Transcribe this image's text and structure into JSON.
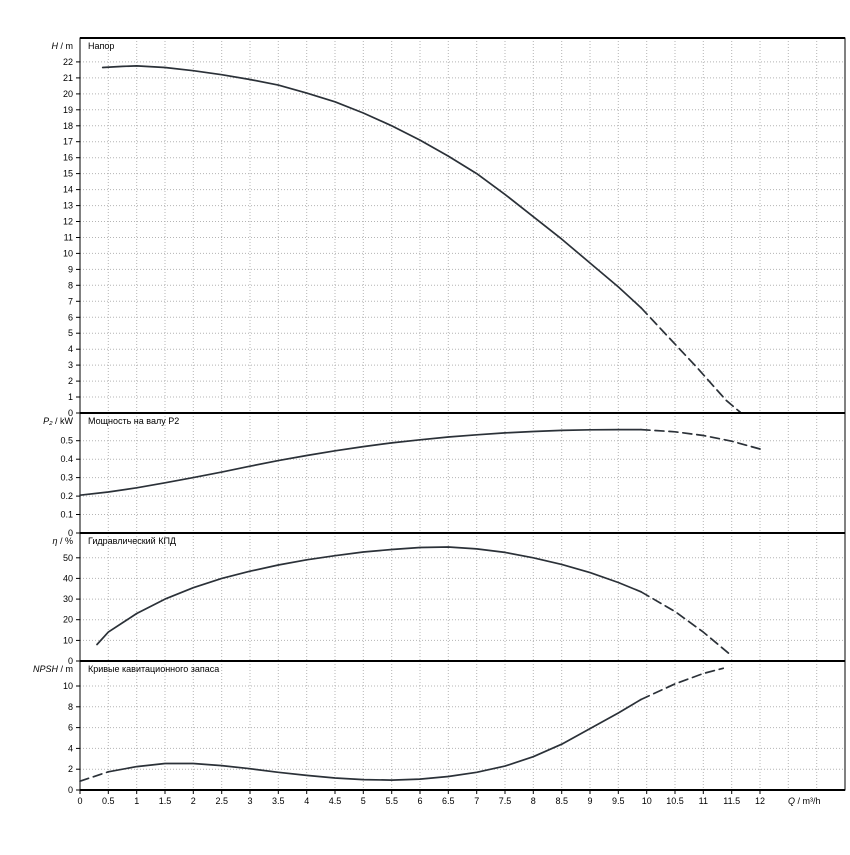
{
  "page": {
    "background": "#ffffff",
    "curve_color": "#2b3138",
    "grid_color": "#b4b4b4",
    "axis_color": "#000000"
  },
  "xaxis": {
    "label": "Q / m³/h",
    "min": 0,
    "max": 13.5,
    "grid_step": 0.5,
    "ticks": [
      0,
      0.5,
      1,
      1.5,
      2,
      2.5,
      3,
      3.5,
      4,
      4.5,
      5,
      5.5,
      6,
      6.5,
      7,
      7.5,
      8,
      8.5,
      9,
      9.5,
      10,
      10.5,
      11,
      11.5,
      12
    ]
  },
  "chart_data": [
    {
      "type": "line",
      "panel": "head",
      "title": "Напор",
      "ylabel": "H / m",
      "ylim": [
        0,
        23.5
      ],
      "grid": true,
      "yticks": [
        0,
        1,
        2,
        3,
        4,
        5,
        6,
        7,
        8,
        9,
        10,
        11,
        12,
        13,
        14,
        15,
        16,
        17,
        18,
        19,
        20,
        21,
        22
      ],
      "series": [
        {
          "name": "head-solid",
          "dash": false,
          "points": [
            [
              0.4,
              21.65
            ],
            [
              0.75,
              21.72
            ],
            [
              1,
              21.75
            ],
            [
              1.5,
              21.65
            ],
            [
              2,
              21.45
            ],
            [
              2.5,
              21.2
            ],
            [
              3,
              20.9
            ],
            [
              3.5,
              20.55
            ],
            [
              4,
              20.05
            ],
            [
              4.5,
              19.5
            ],
            [
              5,
              18.8
            ],
            [
              5.5,
              18.0
            ],
            [
              6,
              17.1
            ],
            [
              6.5,
              16.1
            ],
            [
              7,
              15.0
            ],
            [
              7.5,
              13.7
            ],
            [
              8,
              12.3
            ],
            [
              8.5,
              10.9
            ],
            [
              9,
              9.4
            ],
            [
              9.5,
              7.9
            ],
            [
              9.9,
              6.6
            ]
          ]
        },
        {
          "name": "head-extrapolated",
          "dash": true,
          "points": [
            [
              9.9,
              6.6
            ],
            [
              10.4,
              4.7
            ],
            [
              10.9,
              2.8
            ],
            [
              11.4,
              0.8
            ],
            [
              11.65,
              0.05
            ]
          ]
        }
      ]
    },
    {
      "type": "line",
      "panel": "power",
      "title": "Мощность на валу P2",
      "ylabel": "P₂ / kW",
      "ylim": [
        0,
        0.65
      ],
      "grid": true,
      "yticks": [
        0,
        0.1,
        0.2,
        0.3,
        0.4,
        0.5
      ],
      "series": [
        {
          "name": "power-solid",
          "dash": false,
          "points": [
            [
              0,
              0.205
            ],
            [
              0.5,
              0.222
            ],
            [
              1,
              0.245
            ],
            [
              1.5,
              0.272
            ],
            [
              2,
              0.3
            ],
            [
              2.5,
              0.33
            ],
            [
              3,
              0.362
            ],
            [
              3.5,
              0.392
            ],
            [
              4,
              0.42
            ],
            [
              4.5,
              0.445
            ],
            [
              5,
              0.468
            ],
            [
              5.5,
              0.488
            ],
            [
              6,
              0.505
            ],
            [
              6.5,
              0.52
            ],
            [
              7,
              0.532
            ],
            [
              7.5,
              0.542
            ],
            [
              8,
              0.55
            ],
            [
              8.5,
              0.556
            ],
            [
              9,
              0.559
            ],
            [
              9.5,
              0.56
            ],
            [
              9.9,
              0.56
            ]
          ]
        },
        {
          "name": "power-extrapolated",
          "dash": true,
          "points": [
            [
              9.9,
              0.56
            ],
            [
              10.5,
              0.548
            ],
            [
              11,
              0.528
            ],
            [
              11.5,
              0.497
            ],
            [
              12,
              0.455
            ]
          ]
        }
      ]
    },
    {
      "type": "line",
      "panel": "efficiency",
      "title": "Гидравлический КПД",
      "ylabel": "η / %",
      "ylim": [
        0,
        62
      ],
      "grid": true,
      "yticks": [
        0,
        10,
        20,
        30,
        40,
        50
      ],
      "series": [
        {
          "name": "efficiency-solid",
          "dash": false,
          "points": [
            [
              0.3,
              8
            ],
            [
              0.5,
              14
            ],
            [
              1,
              23
            ],
            [
              1.5,
              30
            ],
            [
              2,
              35.5
            ],
            [
              2.5,
              40
            ],
            [
              3,
              43.5
            ],
            [
              3.5,
              46.5
            ],
            [
              4,
              49
            ],
            [
              4.5,
              51
            ],
            [
              5,
              52.8
            ],
            [
              5.5,
              54
            ],
            [
              6,
              55
            ],
            [
              6.5,
              55.2
            ],
            [
              7,
              54.3
            ],
            [
              7.5,
              52.6
            ],
            [
              8,
              50
            ],
            [
              8.5,
              46.8
            ],
            [
              9,
              42.8
            ],
            [
              9.5,
              38
            ],
            [
              9.9,
              33.5
            ]
          ]
        },
        {
          "name": "efficiency-extrapolated",
          "dash": true,
          "points": [
            [
              9.9,
              33.5
            ],
            [
              10.5,
              24
            ],
            [
              11,
              14
            ],
            [
              11.5,
              2.5
            ]
          ]
        }
      ]
    },
    {
      "type": "line",
      "panel": "npsh",
      "title": "Кривые кавитационного запаса",
      "ylabel": "NPSH / m",
      "ylim": [
        0,
        12.4
      ],
      "grid": true,
      "yticks": [
        0,
        2,
        4,
        6,
        8,
        10
      ],
      "series": [
        {
          "name": "npsh-lead-extrapolated",
          "dash": true,
          "points": [
            [
              0,
              0.85
            ],
            [
              0.5,
              1.75
            ]
          ]
        },
        {
          "name": "npsh-solid",
          "dash": false,
          "points": [
            [
              0.5,
              1.75
            ],
            [
              1,
              2.25
            ],
            [
              1.5,
              2.55
            ],
            [
              2,
              2.55
            ],
            [
              2.5,
              2.35
            ],
            [
              3,
              2.05
            ],
            [
              3.5,
              1.7
            ],
            [
              4,
              1.4
            ],
            [
              4.5,
              1.15
            ],
            [
              5,
              1.0
            ],
            [
              5.5,
              0.95
            ],
            [
              6,
              1.05
            ],
            [
              6.5,
              1.3
            ],
            [
              7,
              1.7
            ],
            [
              7.5,
              2.3
            ],
            [
              8,
              3.2
            ],
            [
              8.5,
              4.4
            ],
            [
              9,
              5.9
            ],
            [
              9.5,
              7.4
            ],
            [
              9.9,
              8.7
            ]
          ]
        },
        {
          "name": "npsh-tail-extrapolated",
          "dash": true,
          "points": [
            [
              9.9,
              8.7
            ],
            [
              10.5,
              10.2
            ],
            [
              11,
              11.2
            ],
            [
              11.35,
              11.7
            ]
          ]
        }
      ]
    }
  ]
}
